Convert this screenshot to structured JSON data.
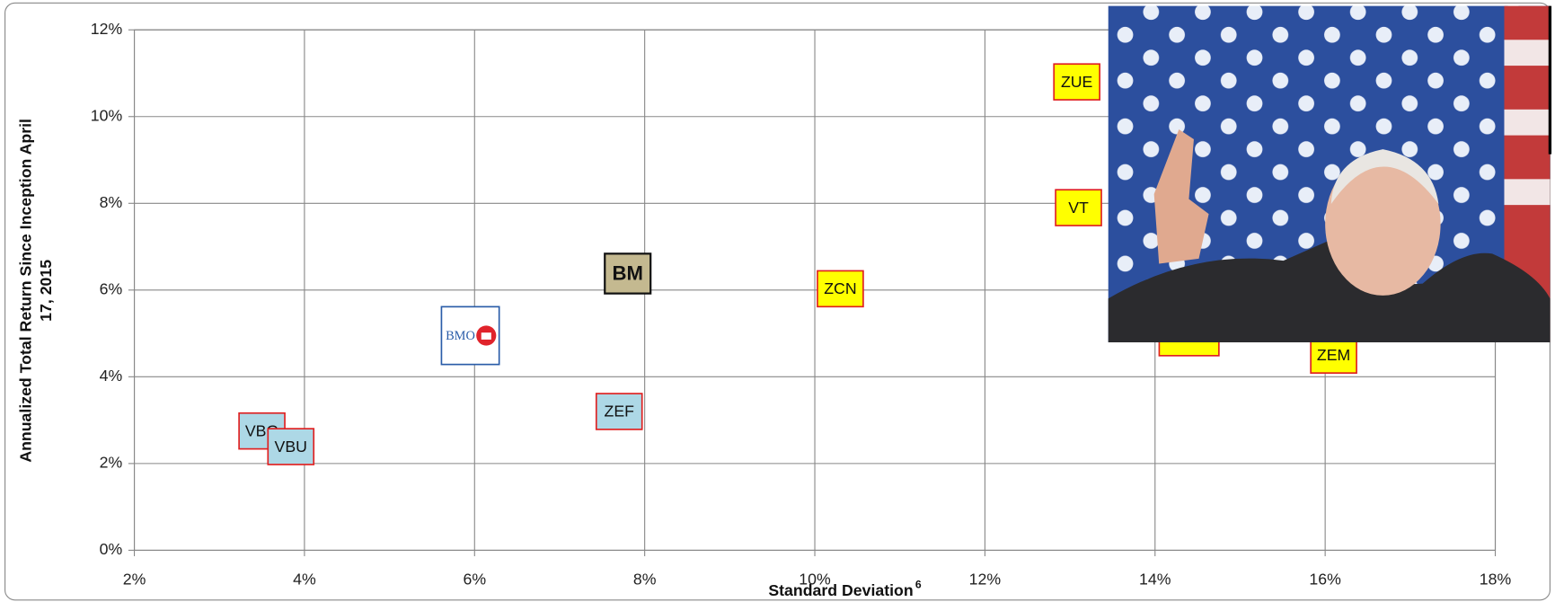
{
  "chart_data": {
    "type": "scatter",
    "x_label": "Standard Deviation",
    "x_label_note": "6",
    "y_label": [
      "Annualized Total Return Since Inception April",
      "17, 2015"
    ],
    "labels": [
      "VBG",
      "VBU",
      "BMO",
      "BM",
      "ZEF",
      "ZCN",
      "ZUE",
      "VT",
      null,
      "ZEM"
    ],
    "x": [
      3.5,
      3.84,
      5.95,
      7.8,
      7.7,
      10.3,
      13.08,
      13.1,
      14.4,
      16.1
    ],
    "values": [
      2.75,
      2.39,
      4.95,
      6.38,
      3.2,
      6.03,
      10.8,
      7.9,
      4.9,
      4.5
    ],
    "colors": [
      "#add8e6",
      "#add8e6",
      "#ffffff",
      "#c4b990",
      "#add8e6",
      "#ffff00",
      "#ffff00",
      "#ffff00",
      "#ffff00",
      "#ffff00"
    ],
    "edge_colors": [
      "#e02020",
      "#e02020",
      "#2a5ca8",
      "#111111",
      "#e02020",
      "#e02020",
      "#e02020",
      "#e02020",
      "#e02020",
      "#e02020"
    ],
    "label_bold": [
      false,
      false,
      false,
      true,
      false,
      false,
      false,
      false,
      false,
      false
    ],
    "xlim": [
      2,
      18
    ],
    "xticks": [
      {
        "value": 2,
        "label": "2%"
      },
      {
        "value": 4,
        "label": "4%"
      },
      {
        "value": 6,
        "label": "6%"
      },
      {
        "value": 8,
        "label": "8%"
      },
      {
        "value": 10,
        "label": "10%"
      },
      {
        "value": 12,
        "label": "12%"
      },
      {
        "value": 14,
        "label": "14%"
      },
      {
        "value": 16,
        "label": "16%"
      },
      {
        "value": 18,
        "label": "18%"
      }
    ],
    "ylim": [
      0,
      12
    ],
    "yticks": [
      {
        "value": 0,
        "label": "0%"
      },
      {
        "value": 2,
        "label": "2%"
      },
      {
        "value": 4,
        "label": "4%"
      },
      {
        "value": 6,
        "label": "6%"
      },
      {
        "value": 8,
        "label": "8%"
      },
      {
        "value": 10,
        "label": "10%"
      },
      {
        "value": 12,
        "label": "12%"
      }
    ],
    "grid": true
  }
}
